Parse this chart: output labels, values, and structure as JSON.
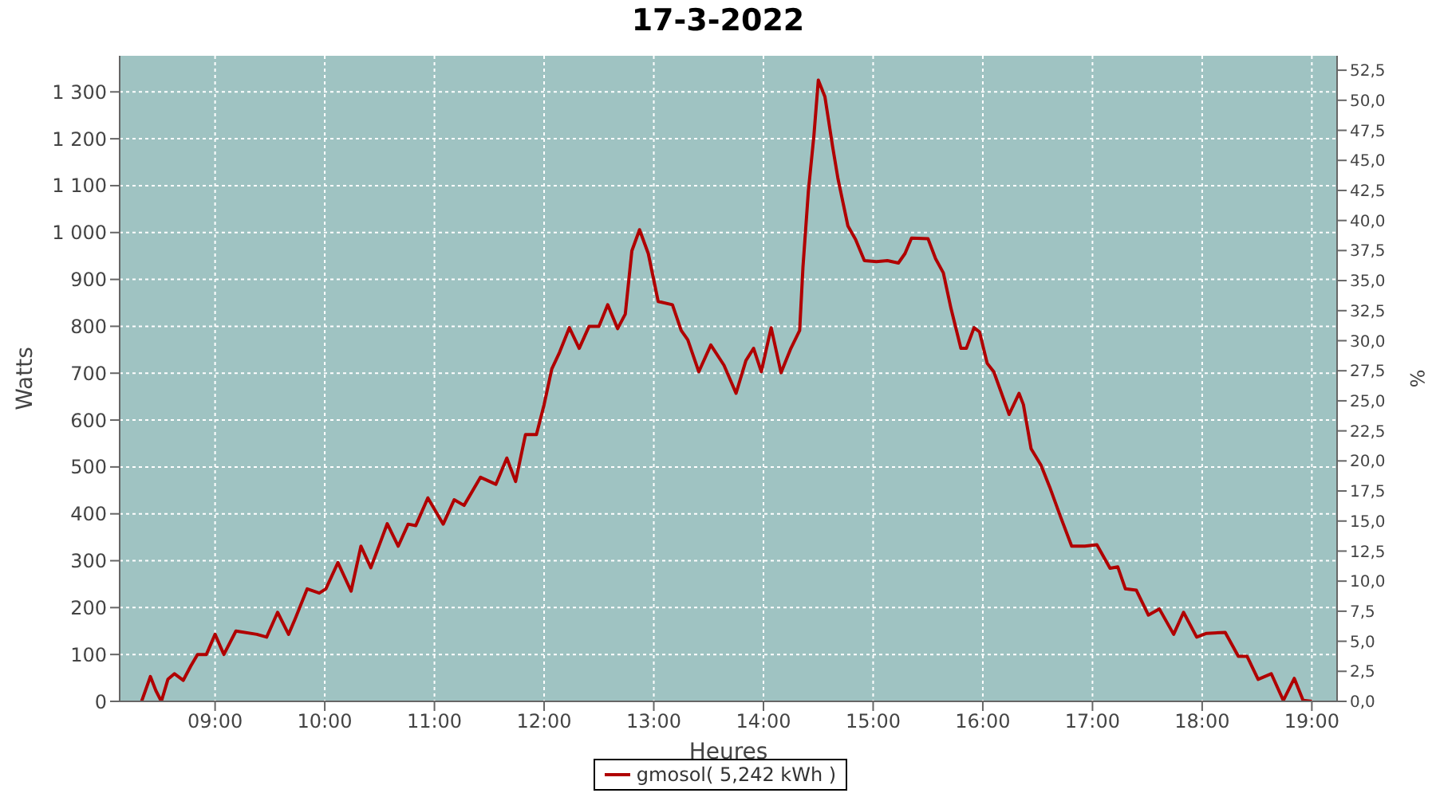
{
  "chart_data": {
    "type": "line",
    "title": "17-3-2022",
    "xlabel": "Heures",
    "ylabel": "Watts",
    "y2label": "%",
    "xlim": [
      8.13,
      19.23
    ],
    "xticks": [
      {
        "value": 9,
        "label": "09:00"
      },
      {
        "value": 10,
        "label": "10:00"
      },
      {
        "value": 11,
        "label": "11:00"
      },
      {
        "value": 12,
        "label": "12:00"
      },
      {
        "value": 13,
        "label": "13:00"
      },
      {
        "value": 14,
        "label": "14:00"
      },
      {
        "value": 15,
        "label": "15:00"
      },
      {
        "value": 16,
        "label": "16:00"
      },
      {
        "value": 17,
        "label": "17:00"
      },
      {
        "value": 18,
        "label": "18:00"
      },
      {
        "value": 19,
        "label": "19:00"
      }
    ],
    "ylim": [
      0,
      1377
    ],
    "yticks": [
      0,
      100,
      200,
      300,
      400,
      500,
      600,
      700,
      800,
      900,
      {
        "value": 1000,
        "label": "1 000"
      },
      {
        "value": 1100,
        "label": "1 100"
      },
      {
        "value": 1200,
        "label": "1 200"
      },
      {
        "value": 1300,
        "label": "1 300"
      }
    ],
    "y2lim": [
      0,
      53.7
    ],
    "y2ticks": [
      {
        "value": 0,
        "label": "0,0"
      },
      {
        "value": 2.5,
        "label": "2,5"
      },
      {
        "value": 5,
        "label": "5,0"
      },
      {
        "value": 7.5,
        "label": "7,5"
      },
      {
        "value": 10,
        "label": "10,0"
      },
      {
        "value": 12.5,
        "label": "12,5"
      },
      {
        "value": 15,
        "label": "15,0"
      },
      {
        "value": 17.5,
        "label": "17,5"
      },
      {
        "value": 20,
        "label": "20,0"
      },
      {
        "value": 22.5,
        "label": "22,5"
      },
      {
        "value": 25,
        "label": "25,0"
      },
      {
        "value": 27.5,
        "label": "27,5"
      },
      {
        "value": 30,
        "label": "30,0"
      },
      {
        "value": 32.5,
        "label": "32,5"
      },
      {
        "value": 35,
        "label": "35,0"
      },
      {
        "value": 37.5,
        "label": "37,5"
      },
      {
        "value": 40,
        "label": "40,0"
      },
      {
        "value": 42.5,
        "label": "42,5"
      },
      {
        "value": 45,
        "label": "45,0"
      },
      {
        "value": 47.5,
        "label": "47,5"
      },
      {
        "value": 50,
        "label": "50,0"
      },
      {
        "value": 52.5,
        "label": "52,5"
      }
    ],
    "grid": true,
    "legend": "bottom",
    "marker": "none",
    "line_style": "solid",
    "series": [
      {
        "name": "gmosol( 5,242 kWh )",
        "color": "#b00000",
        "x": [
          8.33,
          8.41,
          8.46,
          8.51,
          8.57,
          8.63,
          8.71,
          8.78,
          8.84,
          8.92,
          9.0,
          9.08,
          9.19,
          9.38,
          9.47,
          9.57,
          9.67,
          9.73,
          9.84,
          9.95,
          10.01,
          10.12,
          10.24,
          10.33,
          10.42,
          10.57,
          10.67,
          10.76,
          10.83,
          10.94,
          11.08,
          11.18,
          11.27,
          11.42,
          11.56,
          11.66,
          11.74,
          11.83,
          11.93,
          12.0,
          12.07,
          12.14,
          12.23,
          12.32,
          12.41,
          12.5,
          12.58,
          12.67,
          12.74,
          12.8,
          12.87,
          12.95,
          13.04,
          13.17,
          13.25,
          13.31,
          13.41,
          13.52,
          13.64,
          13.75,
          13.84,
          13.91,
          13.98,
          14.07,
          14.16,
          14.25,
          14.33,
          14.36,
          14.41,
          14.46,
          14.5,
          14.56,
          14.63,
          14.68,
          14.77,
          14.84,
          14.92,
          15.03,
          15.13,
          15.23,
          15.29,
          15.35,
          15.5,
          15.57,
          15.64,
          15.71,
          15.8,
          15.85,
          15.92,
          15.97,
          16.04,
          16.1,
          16.24,
          16.33,
          16.37,
          16.44,
          16.53,
          16.61,
          16.71,
          16.81,
          16.93,
          17.04,
          17.16,
          17.23,
          17.3,
          17.4,
          17.51,
          17.61,
          17.74,
          17.83,
          17.95,
          18.04,
          18.21,
          18.33,
          18.41,
          18.51,
          18.63,
          18.74,
          18.84,
          18.92,
          19.0
        ],
        "values": [
          0,
          53,
          23,
          0,
          47,
          59,
          45,
          76,
          100,
          100,
          143,
          100,
          150,
          143,
          137,
          190,
          143,
          176,
          240,
          231,
          240,
          296,
          235,
          331,
          285,
          379,
          331,
          378,
          375,
          434,
          378,
          430,
          418,
          478,
          463,
          519,
          469,
          569,
          569,
          633,
          709,
          744,
          797,
          753,
          800,
          800,
          846,
          795,
          826,
          961,
          1006,
          955,
          853,
          846,
          791,
          771,
          703,
          760,
          717,
          657,
          727,
          753,
          703,
          797,
          701,
          753,
          791,
          926,
          1090,
          1207,
          1325,
          1290,
          1184,
          1114,
          1014,
          985,
          940,
          938,
          940,
          935,
          955,
          988,
          987,
          944,
          914,
          838,
          753,
          753,
          797,
          788,
          721,
          703,
          612,
          657,
          633,
          539,
          504,
          457,
          393,
          331,
          331,
          334,
          284,
          287,
          240,
          237,
          184,
          197,
          143,
          190,
          137,
          145,
          147,
          96,
          96,
          47,
          59,
          2,
          49,
          2,
          0
        ]
      }
    ]
  }
}
